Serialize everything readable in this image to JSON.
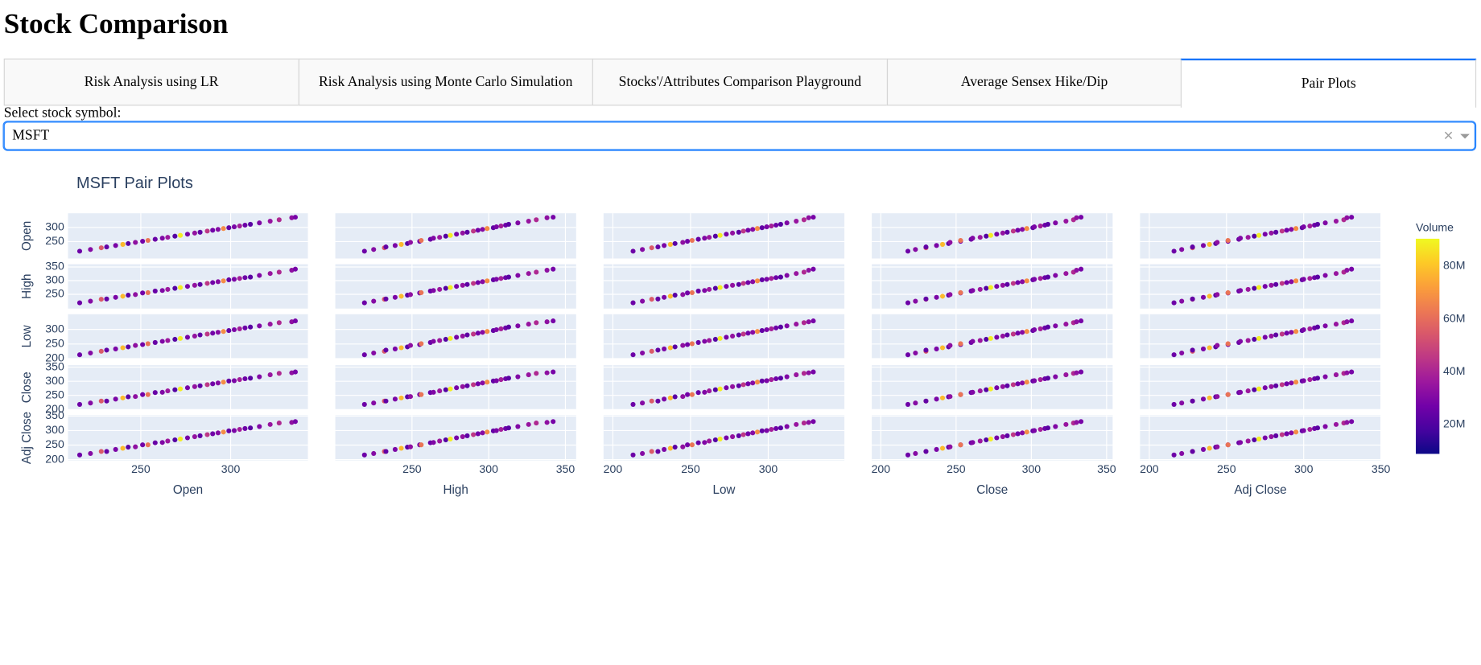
{
  "header": {
    "title": "Stock Comparison"
  },
  "tabs": {
    "items": [
      "Risk Analysis using LR",
      "Risk Analysis using Monte Carlo Simulation",
      "Stocks'/Attributes Comparison Playground",
      "Average Sensex Hike/Dip",
      "Pair Plots"
    ],
    "selected": 4
  },
  "dropdown": {
    "label": "Select stock symbol:",
    "value": "MSFT"
  },
  "chart_data": {
    "type": "splom",
    "title": "MSFT Pair Plots",
    "dimensions": [
      {
        "label": "Open",
        "xlim": [
          209.5,
          343
        ],
        "xticks": [
          250,
          300
        ],
        "ylim": [
          190,
          350
        ],
        "yticks": [
          250,
          300
        ],
        "values": [
          216,
          222,
          228,
          231,
          236,
          240,
          243,
          247,
          251,
          254,
          258,
          262,
          265,
          269,
          272,
          276,
          280,
          283,
          287,
          290,
          293,
          296,
          299,
          302,
          305,
          308,
          311,
          316,
          322,
          327,
          334,
          336
        ]
      },
      {
        "label": "High",
        "xlim": [
          200,
          357
        ],
        "xticks": [
          250,
          300,
          350
        ],
        "ylim": [
          198,
          360
        ],
        "yticks": [
          250,
          300,
          350
        ],
        "values": [
          219,
          225,
          232,
          233,
          239,
          243,
          247,
          249,
          255,
          256,
          262,
          264,
          268,
          272,
          275,
          279,
          283,
          286,
          290,
          293,
          296,
          299,
          303,
          305,
          308,
          311,
          313,
          319,
          326,
          331,
          338,
          342
        ]
      },
      {
        "label": "Low",
        "xlim": [
          194,
          349
        ],
        "xticks": [
          200,
          250,
          300
        ],
        "ylim": [
          200,
          352
        ],
        "yticks": [
          200,
          250,
          300
        ],
        "values": [
          213,
          219,
          225,
          229,
          233,
          237,
          240,
          245,
          248,
          251,
          255,
          259,
          262,
          266,
          269,
          273,
          277,
          281,
          284,
          287,
          290,
          293,
          296,
          299,
          302,
          305,
          308,
          312,
          318,
          323,
          326,
          329
        ]
      },
      {
        "label": "Close",
        "xlim": [
          194,
          354
        ],
        "xticks": [
          200,
          250,
          300,
          350
        ],
        "ylim": [
          200,
          357
        ],
        "yticks": [
          200,
          250,
          300,
          350
        ],
        "values": [
          218,
          223,
          230,
          230,
          237,
          241,
          245,
          246,
          253,
          253,
          260,
          261,
          266,
          270,
          273,
          277,
          281,
          284,
          288,
          291,
          294,
          297,
          301,
          302,
          306,
          309,
          311,
          316,
          323,
          328,
          330,
          333
        ]
      },
      {
        "label": "Adj Close",
        "xlim": [
          194,
          350
        ],
        "xticks": [
          200,
          250,
          300,
          350
        ],
        "ylim": [
          197,
          353
        ],
        "yticks": [
          200,
          250,
          300,
          350
        ],
        "values": [
          216,
          221,
          228,
          228,
          235,
          239,
          243,
          244,
          251,
          251,
          258,
          259,
          264,
          268,
          271,
          275,
          279,
          282,
          286,
          289,
          292,
          295,
          299,
          300,
          304,
          307,
          309,
          314,
          321,
          326,
          328,
          331
        ]
      }
    ],
    "color": {
      "title": "Volume",
      "clim": [
        8900000,
        90400000
      ],
      "colorscale": [
        "#0d0887",
        "#46039f",
        "#7201a8",
        "#9c179e",
        "#bd3786",
        "#d8576b",
        "#ed7953",
        "#fb9f3a",
        "#fdca26",
        "#f0f921"
      ],
      "ticks": [
        {
          "value": 20000000,
          "label": "20M"
        },
        {
          "value": 40000000,
          "label": "40M"
        },
        {
          "value": 60000000,
          "label": "60M"
        },
        {
          "value": 80000000,
          "label": "80M"
        }
      ],
      "values": [
        26000000,
        31000000,
        55000000,
        24000000,
        29000000,
        78000000,
        22000000,
        33000000,
        27000000,
        62000000,
        25000000,
        30000000,
        36000000,
        21000000,
        88000000,
        28000000,
        34000000,
        23000000,
        45000000,
        27000000,
        31000000,
        68000000,
        24000000,
        29000000,
        38000000,
        26000000,
        22000000,
        30000000,
        35000000,
        41000000,
        33000000,
        28000000
      ]
    }
  }
}
